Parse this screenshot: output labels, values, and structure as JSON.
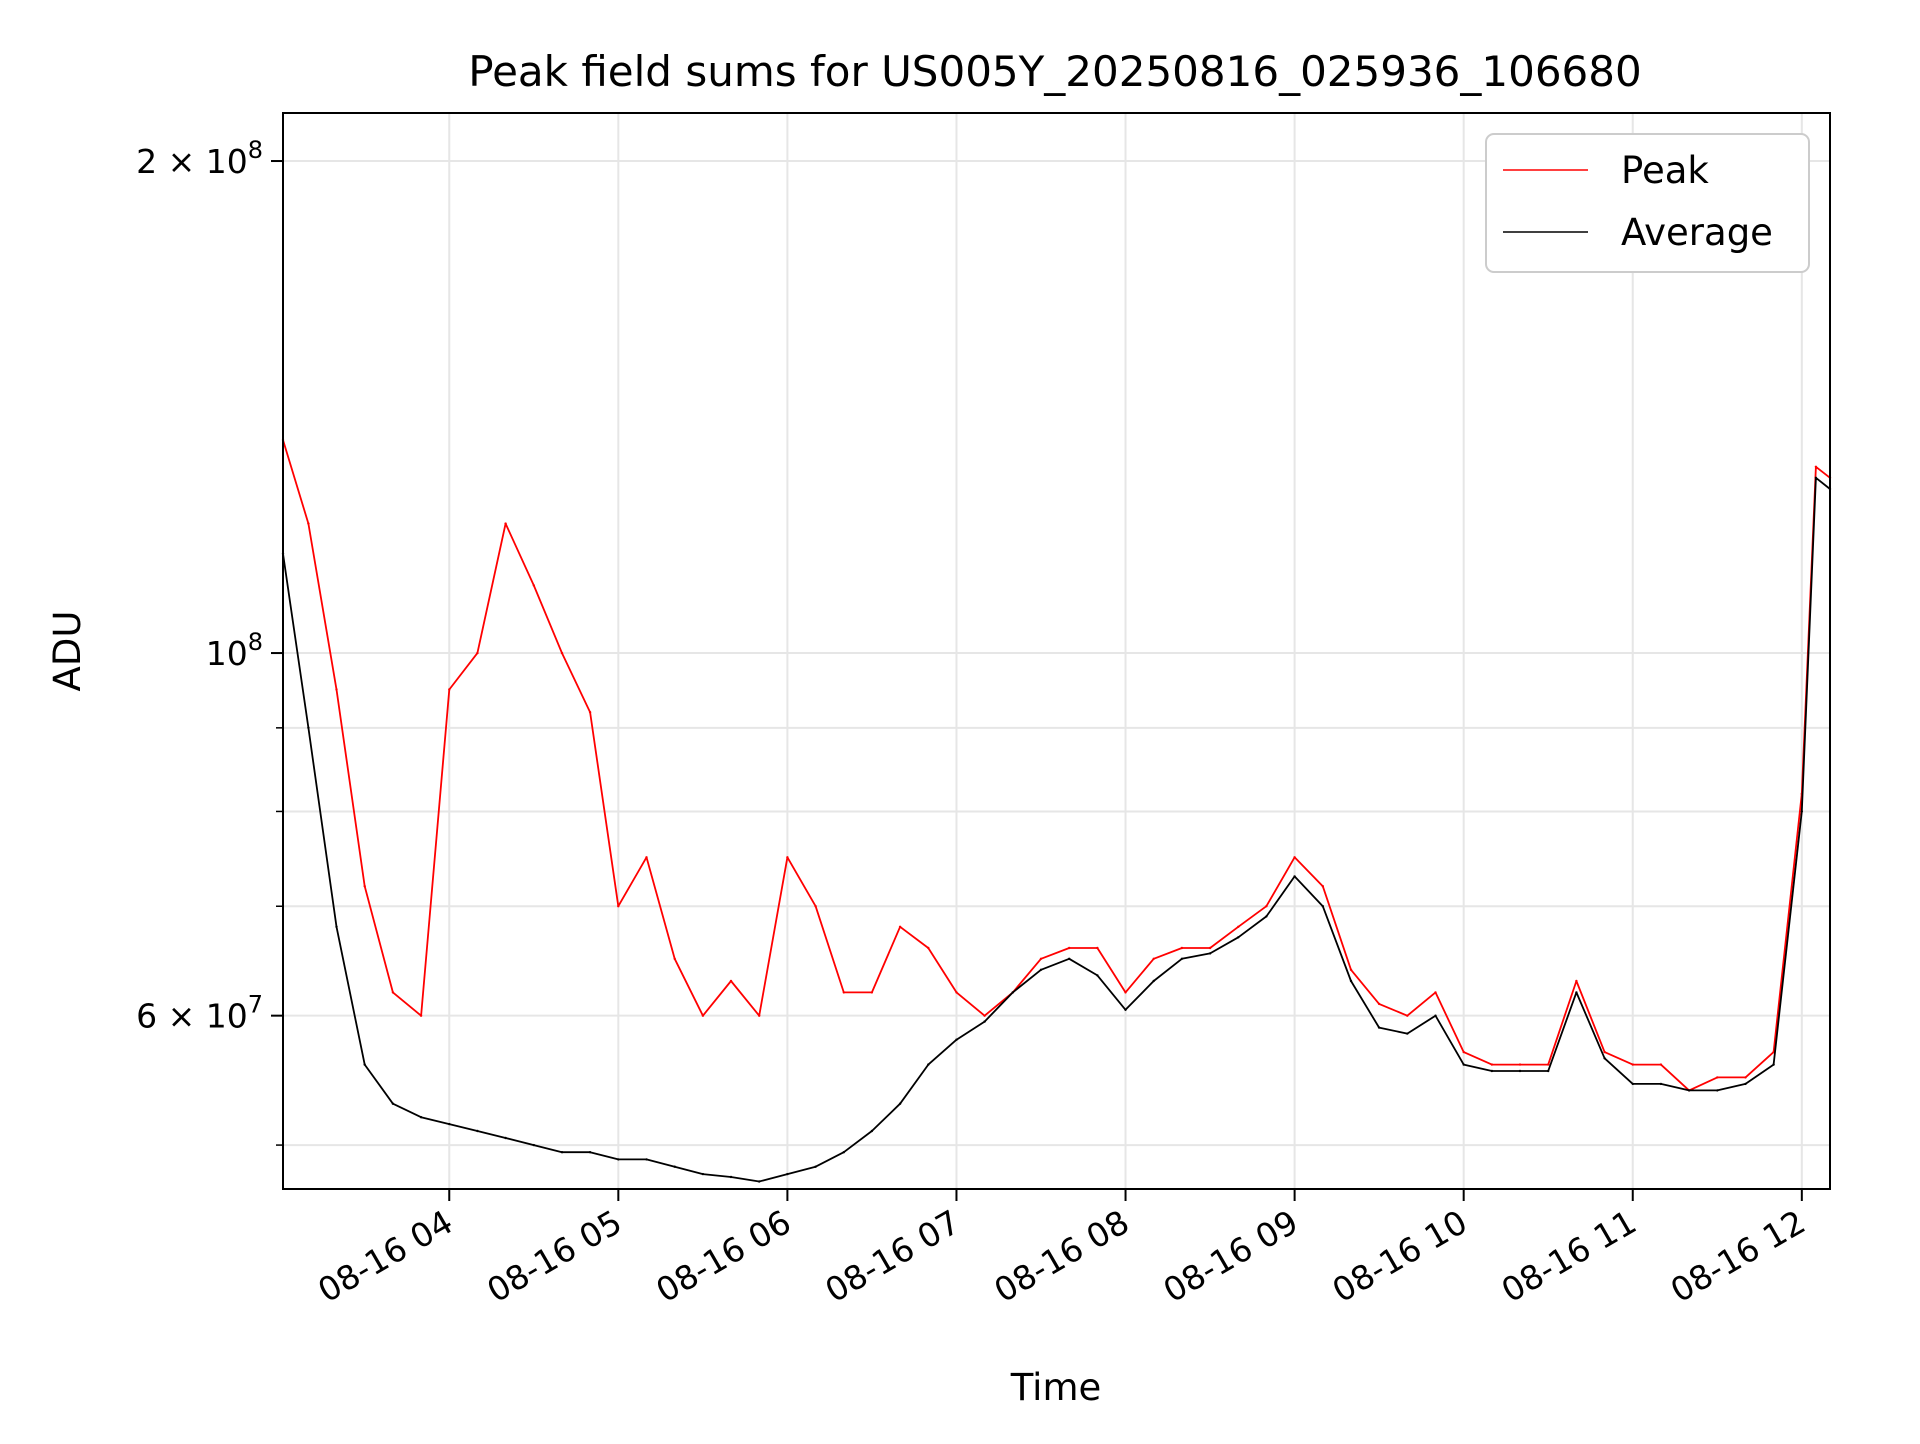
{
  "chart_data": {
    "type": "line",
    "title": "Peak field sums for US005Y_20250816_025936_106680",
    "xlabel": "Time",
    "ylabel": "ADU",
    "yscale": "log",
    "grid": true,
    "legend_position": "top-right",
    "xlim": [
      "2025-08-16 03:01",
      "2025-08-16 12:10"
    ],
    "ylim": [
      47000000,
      214000000
    ],
    "x_ticks": [
      {
        "value": "2025-08-16 04:00",
        "label": "08-16 04"
      },
      {
        "value": "2025-08-16 05:00",
        "label": "08-16 05"
      },
      {
        "value": "2025-08-16 06:00",
        "label": "08-16 06"
      },
      {
        "value": "2025-08-16 07:00",
        "label": "08-16 07"
      },
      {
        "value": "2025-08-16 08:00",
        "label": "08-16 08"
      },
      {
        "value": "2025-08-16 09:00",
        "label": "08-16 09"
      },
      {
        "value": "2025-08-16 10:00",
        "label": "08-16 10"
      },
      {
        "value": "2025-08-16 11:00",
        "label": "08-16 11"
      },
      {
        "value": "2025-08-16 12:00",
        "label": "08-16 12"
      }
    ],
    "y_ticks": [
      {
        "value": 200000000,
        "label": "2 × 10",
        "exp": "8"
      },
      {
        "value": 100000000,
        "label": "10",
        "exp": "8"
      },
      {
        "value": 60000000,
        "label": "6 × 10",
        "exp": "7"
      }
    ],
    "y_minor_ticks": [
      50000000,
      70000000,
      80000000,
      90000000
    ],
    "series": [
      {
        "name": "Peak",
        "color": "#ff0000",
        "x": [
          "2025-08-16 03:01",
          "2025-08-16 03:10",
          "2025-08-16 03:20",
          "2025-08-16 03:30",
          "2025-08-16 03:40",
          "2025-08-16 03:50",
          "2025-08-16 04:00",
          "2025-08-16 04:10",
          "2025-08-16 04:20",
          "2025-08-16 04:30",
          "2025-08-16 04:40",
          "2025-08-16 04:50",
          "2025-08-16 05:00",
          "2025-08-16 05:10",
          "2025-08-16 05:20",
          "2025-08-16 05:30",
          "2025-08-16 05:40",
          "2025-08-16 05:50",
          "2025-08-16 06:00",
          "2025-08-16 06:10",
          "2025-08-16 06:20",
          "2025-08-16 06:30",
          "2025-08-16 06:40",
          "2025-08-16 06:50",
          "2025-08-16 07:00",
          "2025-08-16 07:10",
          "2025-08-16 07:20",
          "2025-08-16 07:30",
          "2025-08-16 07:40",
          "2025-08-16 07:50",
          "2025-08-16 08:00",
          "2025-08-16 08:10",
          "2025-08-16 08:20",
          "2025-08-16 08:30",
          "2025-08-16 08:40",
          "2025-08-16 08:50",
          "2025-08-16 09:00",
          "2025-08-16 09:10",
          "2025-08-16 09:20",
          "2025-08-16 09:30",
          "2025-08-16 09:40",
          "2025-08-16 09:50",
          "2025-08-16 10:00",
          "2025-08-16 10:10",
          "2025-08-16 10:20",
          "2025-08-16 10:30",
          "2025-08-16 10:40",
          "2025-08-16 10:50",
          "2025-08-16 11:00",
          "2025-08-16 11:10",
          "2025-08-16 11:20",
          "2025-08-16 11:30",
          "2025-08-16 11:40",
          "2025-08-16 11:50",
          "2025-08-16 12:00",
          "2025-08-16 12:05",
          "2025-08-16 12:10"
        ],
        "y": [
          135000000,
          120000000,
          95000000,
          72000000,
          62000000,
          60000000,
          95000000,
          100000000,
          120000000,
          110000000,
          100000000,
          92000000,
          70000000,
          75000000,
          65000000,
          60000000,
          63000000,
          60000000,
          75000000,
          70000000,
          62000000,
          62000000,
          68000000,
          66000000,
          62000000,
          60000000,
          62000000,
          65000000,
          66000000,
          66000000,
          62000000,
          65000000,
          66000000,
          66000000,
          68000000,
          70000000,
          75000000,
          72000000,
          64000000,
          61000000,
          60000000,
          62000000,
          57000000,
          56000000,
          56000000,
          56000000,
          63000000,
          57000000,
          56000000,
          56000000,
          54000000,
          55000000,
          55000000,
          57000000,
          82000000,
          130000000,
          128000000
        ]
      },
      {
        "name": "Average",
        "color": "#000000",
        "x": [
          "2025-08-16 03:01",
          "2025-08-16 03:10",
          "2025-08-16 03:20",
          "2025-08-16 03:30",
          "2025-08-16 03:40",
          "2025-08-16 03:50",
          "2025-08-16 04:00",
          "2025-08-16 04:10",
          "2025-08-16 04:20",
          "2025-08-16 04:30",
          "2025-08-16 04:40",
          "2025-08-16 04:50",
          "2025-08-16 05:00",
          "2025-08-16 05:10",
          "2025-08-16 05:20",
          "2025-08-16 05:30",
          "2025-08-16 05:40",
          "2025-08-16 05:50",
          "2025-08-16 06:00",
          "2025-08-16 06:10",
          "2025-08-16 06:20",
          "2025-08-16 06:30",
          "2025-08-16 06:40",
          "2025-08-16 06:50",
          "2025-08-16 07:00",
          "2025-08-16 07:10",
          "2025-08-16 07:20",
          "2025-08-16 07:30",
          "2025-08-16 07:40",
          "2025-08-16 07:50",
          "2025-08-16 08:00",
          "2025-08-16 08:10",
          "2025-08-16 08:20",
          "2025-08-16 08:30",
          "2025-08-16 08:40",
          "2025-08-16 08:50",
          "2025-08-16 09:00",
          "2025-08-16 09:10",
          "2025-08-16 09:20",
          "2025-08-16 09:30",
          "2025-08-16 09:40",
          "2025-08-16 09:50",
          "2025-08-16 10:00",
          "2025-08-16 10:10",
          "2025-08-16 10:20",
          "2025-08-16 10:30",
          "2025-08-16 10:40",
          "2025-08-16 10:50",
          "2025-08-16 11:00",
          "2025-08-16 11:10",
          "2025-08-16 11:20",
          "2025-08-16 11:30",
          "2025-08-16 11:40",
          "2025-08-16 11:50",
          "2025-08-16 12:00",
          "2025-08-16 12:05",
          "2025-08-16 12:10"
        ],
        "y": [
          115000000,
          90000000,
          68000000,
          56000000,
          53000000,
          52000000,
          51500000,
          51000000,
          50500000,
          50000000,
          49500000,
          49500000,
          49000000,
          49000000,
          48500000,
          48000000,
          47800000,
          47500000,
          48000000,
          48500000,
          49500000,
          51000000,
          53000000,
          56000000,
          58000000,
          59500000,
          62000000,
          64000000,
          65000000,
          63500000,
          60500000,
          63000000,
          65000000,
          65500000,
          67000000,
          69000000,
          73000000,
          70000000,
          63000000,
          59000000,
          58500000,
          60000000,
          56000000,
          55500000,
          55500000,
          55500000,
          62000000,
          56500000,
          54500000,
          54500000,
          54000000,
          54000000,
          54500000,
          56000000,
          80000000,
          128000000,
          126000000
        ]
      }
    ]
  }
}
